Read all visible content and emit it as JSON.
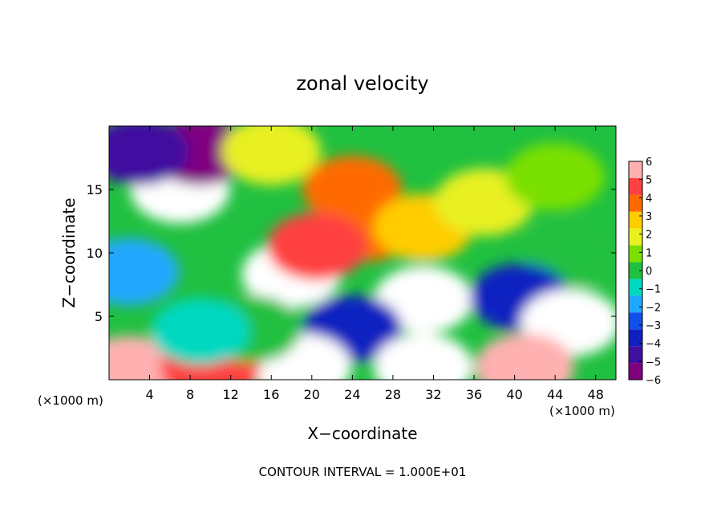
{
  "chart_data": {
    "type": "heatmap",
    "title": "zonal velocity",
    "xlabel": "X−coordinate",
    "ylabel": "Z−coordinate",
    "x_unit_left": "(×1000 m)",
    "x_unit_right": "(×1000 m)",
    "footer": "CONTOUR INTERVAL = 1.000E+01",
    "xlim": [
      0,
      50
    ],
    "ylim": [
      0,
      20
    ],
    "x_ticks": [
      4,
      8,
      12,
      16,
      20,
      24,
      28,
      32,
      36,
      40,
      44,
      48
    ],
    "y_ticks": [
      5,
      10,
      15
    ],
    "colorbar": {
      "min": -6,
      "max": 6,
      "tick_values": [
        6,
        5,
        4,
        3,
        2,
        1,
        0,
        -1,
        -2,
        -3,
        -4,
        -5,
        -6
      ],
      "tick_labels": [
        "6",
        "5",
        "4",
        "3",
        "2",
        "1",
        "0",
        "−1",
        "−2",
        "−3",
        "−4",
        "−5",
        "−6"
      ],
      "colors": [
        "#ffb0b0",
        "#ff4040",
        "#ff6a00",
        "#ffcc00",
        "#e8f020",
        "#7ae000",
        "#20c040",
        "#00d8c0",
        "#20a8ff",
        "#1050e8",
        "#1020c0",
        "#4010a0",
        "#800080"
      ]
    },
    "features": [
      {
        "x": 7,
        "z": 15,
        "value": -7
      },
      {
        "x": 9,
        "z": 18,
        "value": -5.5
      },
      {
        "x": 3,
        "z": 18,
        "value": -4.5
      },
      {
        "x": 2,
        "z": 8.5,
        "value": -2
      },
      {
        "x": 16,
        "z": 18,
        "value": 2
      },
      {
        "x": 24,
        "z": 15,
        "value": 4.5
      },
      {
        "x": 25.5,
        "z": 12,
        "value": 4
      },
      {
        "x": 31,
        "z": 12,
        "value": 3
      },
      {
        "x": 37,
        "z": 14,
        "value": 2.5
      },
      {
        "x": 44,
        "z": 16,
        "value": 1
      },
      {
        "x": 46,
        "z": 10,
        "value": 0.5
      },
      {
        "x": 18,
        "z": 8.3,
        "value": 7
      },
      {
        "x": 20.5,
        "z": 10.5,
        "value": 5
      },
      {
        "x": 31,
        "z": 6.3,
        "value": 7
      },
      {
        "x": 24,
        "z": 4,
        "value": -4
      },
      {
        "x": 19,
        "z": 1,
        "value": -7
      },
      {
        "x": 31,
        "z": 1,
        "value": -7
      },
      {
        "x": 40.5,
        "z": 6.5,
        "value": -4
      },
      {
        "x": 45.5,
        "z": 4.5,
        "value": 7
      },
      {
        "x": 2,
        "z": 0.8,
        "value": 6
      },
      {
        "x": 10,
        "z": 1,
        "value": 5
      },
      {
        "x": 41,
        "z": 1,
        "value": 6
      },
      {
        "x": 14,
        "z": 4,
        "value": 0
      },
      {
        "x": 9,
        "z": 3.8,
        "value": -0.5
      }
    ]
  }
}
